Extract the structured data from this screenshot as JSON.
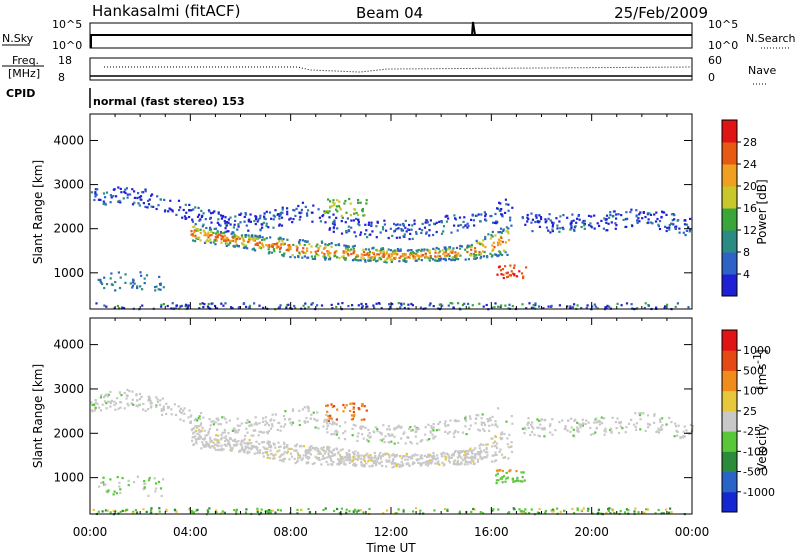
{
  "header": {
    "station": "Hankasalmi (fitACF)",
    "beam": "Beam 04",
    "date": "25/Feb/2009"
  },
  "strip_labels": {
    "nsky": "N.Sky",
    "nsky_ticks": [
      "10^5",
      "10^0"
    ],
    "nsearch": "N.Search",
    "nsearch_ticks": [
      "10^5",
      "10^0"
    ],
    "freq": "Freq.",
    "freq_unit": "[MHz]",
    "freq_ticks": [
      "18",
      "8"
    ],
    "nave": "Nave",
    "nave_ticks": [
      "60",
      "0"
    ],
    "cpid": "CPID",
    "mode": "normal (fast stereo) 153"
  },
  "chart_data": [
    {
      "type": "heatmap",
      "name": "power",
      "ylabel": "Slant Range [km]",
      "yticks": [
        1000,
        2000,
        3000,
        4000
      ],
      "ylim": [
        180,
        4600
      ],
      "xlim": [
        0,
        24
      ],
      "xlabel": "",
      "colorbar": {
        "label": "Power [dB]",
        "ticks": [
          "4",
          "8",
          "12",
          "16",
          "20",
          "24",
          "28"
        ],
        "range": [
          0,
          30
        ],
        "colors": [
          "#1f1fd6",
          "#2e62c6",
          "#2a8a84",
          "#3aa63a",
          "#c8c82a",
          "#f0a020",
          "#e65a14",
          "#e01414"
        ]
      }
    },
    {
      "type": "heatmap",
      "name": "velocity",
      "ylabel": "Slant Range [km]",
      "yticks": [
        1000,
        2000,
        3000,
        4000
      ],
      "ylim": [
        180,
        4600
      ],
      "xlim": [
        0,
        24
      ],
      "xlabel": "Time UT",
      "xticks": [
        "00:00",
        "04:00",
        "08:00",
        "12:00",
        "16:00",
        "20:00",
        "00:00"
      ],
      "colorbar": {
        "label": "Velocity",
        "unit": "[m s",
        "unit_exp": "-1",
        "unit_close": "]",
        "ticks": [
          "1000",
          "500",
          "100",
          "25",
          "-25",
          "-100",
          "-500",
          "-1000"
        ],
        "colors": [
          "#1428d2",
          "#2a64c8",
          "#2a8c3a",
          "#58c838",
          "#c8c8c8",
          "#e6c83a",
          "#f08c1e",
          "#e64a14",
          "#e01414"
        ]
      }
    }
  ]
}
